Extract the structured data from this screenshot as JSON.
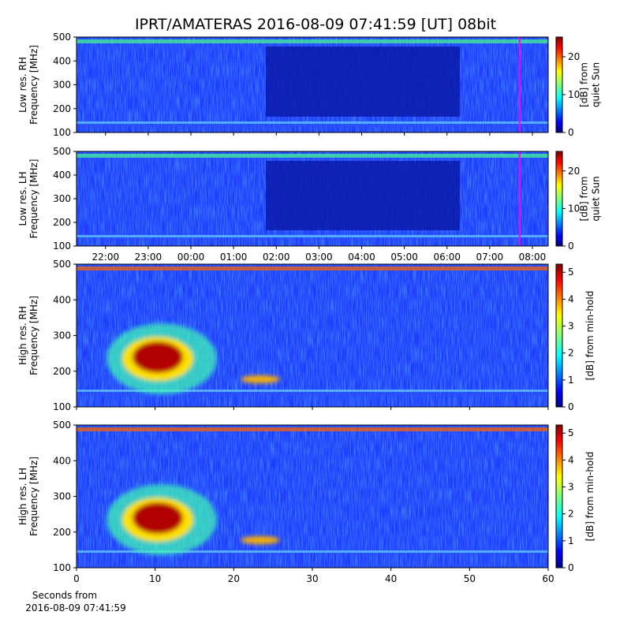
{
  "title": "IPRT/AMATERAS 2016-08-09 07:41:59 [UT]   08bit",
  "chart_data": [
    {
      "type": "heatmap",
      "colormap": "jet",
      "ylabel": [
        "Low res. RH",
        "Frequency [MHz]"
      ],
      "xlim": [
        21.32,
        32.37
      ],
      "ylim": [
        100,
        500
      ],
      "yticks": [
        100,
        200,
        300,
        400,
        500
      ],
      "marker": {
        "value": 31.7,
        "color": "#ff00ff"
      },
      "colorbar": {
        "label": [
          "[dB] from",
          "quiet Sun"
        ],
        "lim": [
          0,
          25.2
        ],
        "ticks": [
          0,
          10,
          20
        ]
      }
    },
    {
      "type": "heatmap",
      "colormap": "jet",
      "ylabel": [
        "Low res. LH",
        "Frequency [MHz]"
      ],
      "xlim": [
        21.32,
        32.37
      ],
      "ylim": [
        100,
        500
      ],
      "yticks": [
        100,
        200,
        300,
        400,
        500
      ],
      "xticks": [
        {
          "value": 22,
          "label": "22:00"
        },
        {
          "value": 23,
          "label": "23:00"
        },
        {
          "value": 24,
          "label": "00:00"
        },
        {
          "value": 25,
          "label": "01:00"
        },
        {
          "value": 26,
          "label": "02:00"
        },
        {
          "value": 27,
          "label": "03:00"
        },
        {
          "value": 28,
          "label": "04:00"
        },
        {
          "value": 29,
          "label": "05:00"
        },
        {
          "value": 30,
          "label": "06:00"
        },
        {
          "value": 31,
          "label": "07:00"
        },
        {
          "value": 32,
          "label": "08:00"
        }
      ],
      "marker": {
        "value": 31.7,
        "color": "#ff00ff"
      },
      "colorbar": {
        "label": [
          "[dB] from",
          "quiet Sun"
        ],
        "lim": [
          0,
          25.2
        ],
        "ticks": [
          0,
          10,
          20
        ]
      }
    },
    {
      "type": "heatmap",
      "colormap": "jet",
      "ylabel": [
        "High res. RH",
        "Frequency [MHz]"
      ],
      "xlim": [
        0,
        60
      ],
      "ylim": [
        100,
        500
      ],
      "yticks": [
        100,
        200,
        300,
        400,
        500
      ],
      "colorbar": {
        "label": [
          "[dB] from min-hold"
        ],
        "lim": [
          0,
          5.3
        ],
        "ticks": [
          0,
          1,
          2,
          3,
          4,
          5
        ]
      }
    },
    {
      "type": "heatmap",
      "colormap": "jet",
      "ylabel": [
        "High res. LH",
        "Frequency [MHz]"
      ],
      "xlim": [
        0,
        60
      ],
      "ylim": [
        100,
        500
      ],
      "yticks": [
        100,
        200,
        300,
        400,
        500
      ],
      "xticks": [
        0,
        10,
        20,
        30,
        40,
        50,
        60
      ],
      "xlabel": [
        "Seconds from",
        "2016-08-09 07:41:59"
      ],
      "colorbar": {
        "label": [
          "[dB] from min-hold"
        ],
        "lim": [
          0,
          5.3
        ],
        "ticks": [
          0,
          1,
          2,
          3,
          4,
          5
        ]
      }
    }
  ]
}
